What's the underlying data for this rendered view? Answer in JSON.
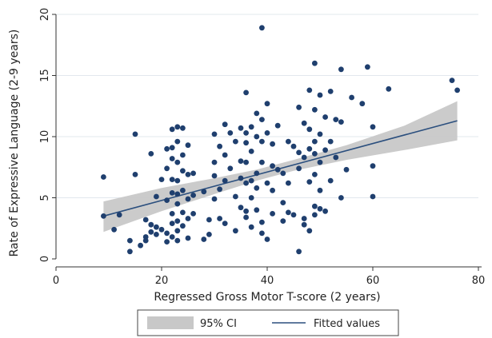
{
  "chart_data": {
    "type": "scatter",
    "xlabel": "Regressed Gross Motor T-score (2 years)",
    "ylabel": "Rate of Expressive Language (2-9 years)",
    "xlim": [
      0,
      80
    ],
    "ylim": [
      0,
      20
    ],
    "xticks": [
      0,
      20,
      40,
      60,
      80
    ],
    "yticks": [
      0,
      5,
      10,
      15,
      20
    ],
    "grid": "horizontal",
    "colors": {
      "points": "#1f3f6e",
      "fit_line": "#2b4f7e",
      "ci_band": "#c8c8c8",
      "grid": "#e2e8ee",
      "axis": "#333333"
    },
    "legend": {
      "position": "bottom",
      "entries": [
        {
          "label": "95% CI",
          "kind": "band"
        },
        {
          "label": "Fitted values",
          "kind": "line"
        }
      ]
    },
    "fitted_values": {
      "x_start": 9,
      "y_start": 3.5,
      "x_end": 76,
      "y_end": 11.3
    },
    "ci_band": {
      "x": [
        9,
        20,
        30,
        38,
        45,
        55,
        66,
        76
      ],
      "lower": [
        2.2,
        3.9,
        5.3,
        6.4,
        7.2,
        8.1,
        8.9,
        9.7
      ],
      "upper": [
        4.7,
        5.8,
        6.6,
        7.3,
        8.1,
        9.3,
        10.9,
        12.9
      ]
    },
    "points": [
      [
        9,
        6.7
      ],
      [
        9,
        3.5
      ],
      [
        11,
        2.4
      ],
      [
        12,
        3.6
      ],
      [
        14,
        0.6
      ],
      [
        14,
        1.5
      ],
      [
        15,
        10.2
      ],
      [
        15,
        6.9
      ],
      [
        16,
        1.1
      ],
      [
        17,
        1.5
      ],
      [
        17,
        1.8
      ],
      [
        17,
        3.2
      ],
      [
        18,
        8.6
      ],
      [
        18,
        2.8
      ],
      [
        18,
        2.2
      ],
      [
        19,
        5.1
      ],
      [
        19,
        2.6
      ],
      [
        19,
        2.0
      ],
      [
        20,
        2.4
      ],
      [
        20,
        6.5
      ],
      [
        21,
        9.0
      ],
      [
        21,
        7.4
      ],
      [
        21,
        4.8
      ],
      [
        21,
        2.1
      ],
      [
        21,
        1.4
      ],
      [
        22,
        10.6
      ],
      [
        22,
        9.1
      ],
      [
        22,
        8.2
      ],
      [
        22,
        6.5
      ],
      [
        22,
        5.4
      ],
      [
        22,
        3.7
      ],
      [
        22,
        2.9
      ],
      [
        22,
        1.8
      ],
      [
        23,
        10.8
      ],
      [
        23,
        9.6
      ],
      [
        23,
        7.9
      ],
      [
        23,
        6.4
      ],
      [
        23,
        5.3
      ],
      [
        23,
        4.5
      ],
      [
        23,
        3.1
      ],
      [
        23,
        2.3
      ],
      [
        23,
        1.5
      ],
      [
        24,
        10.7
      ],
      [
        24,
        8.5
      ],
      [
        24,
        7.2
      ],
      [
        24,
        5.6
      ],
      [
        24,
        3.8
      ],
      [
        24,
        2.7
      ],
      [
        25,
        9.3
      ],
      [
        25,
        6.9
      ],
      [
        25,
        4.9
      ],
      [
        25,
        3.3
      ],
      [
        25,
        1.7
      ],
      [
        26,
        7.0
      ],
      [
        26,
        5.2
      ],
      [
        26,
        3.7
      ],
      [
        28,
        5.5
      ],
      [
        28,
        1.6
      ],
      [
        29,
        3.2
      ],
      [
        29,
        2.0
      ],
      [
        30,
        10.2
      ],
      [
        30,
        7.9
      ],
      [
        30,
        6.8
      ],
      [
        30,
        4.9
      ],
      [
        31,
        9.2
      ],
      [
        31,
        5.7
      ],
      [
        31,
        3.3
      ],
      [
        32,
        11.0
      ],
      [
        32,
        8.5
      ],
      [
        32,
        6.4
      ],
      [
        32,
        2.9
      ],
      [
        33,
        10.3
      ],
      [
        33,
        7.4
      ],
      [
        34,
        9.6
      ],
      [
        34,
        5.1
      ],
      [
        34,
        2.3
      ],
      [
        35,
        10.7
      ],
      [
        35,
        8.0
      ],
      [
        35,
        6.6
      ],
      [
        35,
        4.2
      ],
      [
        36,
        13.6
      ],
      [
        36,
        10.3
      ],
      [
        36,
        9.5
      ],
      [
        36,
        7.9
      ],
      [
        36,
        6.2
      ],
      [
        36,
        3.9
      ],
      [
        36,
        3.4
      ],
      [
        37,
        10.8
      ],
      [
        37,
        8.8
      ],
      [
        37,
        6.4
      ],
      [
        37,
        5.0
      ],
      [
        37,
        2.6
      ],
      [
        38,
        11.9
      ],
      [
        38,
        10.0
      ],
      [
        38,
        7.0
      ],
      [
        38,
        5.8
      ],
      [
        38,
        4.0
      ],
      [
        39,
        18.9
      ],
      [
        39,
        11.4
      ],
      [
        39,
        9.6
      ],
      [
        39,
        7.9
      ],
      [
        39,
        3.0
      ],
      [
        39,
        2.1
      ],
      [
        40,
        12.7
      ],
      [
        40,
        10.3
      ],
      [
        40,
        6.2
      ],
      [
        40,
        1.6
      ],
      [
        41,
        9.4
      ],
      [
        41,
        7.6
      ],
      [
        41,
        5.6
      ],
      [
        41,
        3.7
      ],
      [
        42,
        10.9
      ],
      [
        42,
        7.3
      ],
      [
        43,
        7.0
      ],
      [
        43,
        4.6
      ],
      [
        43,
        3.1
      ],
      [
        44,
        9.6
      ],
      [
        44,
        6.2
      ],
      [
        44,
        3.8
      ],
      [
        45,
        9.2
      ],
      [
        45,
        3.6
      ],
      [
        46,
        12.4
      ],
      [
        46,
        8.7
      ],
      [
        46,
        7.4
      ],
      [
        46,
        0.6
      ],
      [
        47,
        11.1
      ],
      [
        47,
        8.3
      ],
      [
        47,
        3.3
      ],
      [
        47,
        2.8
      ],
      [
        48,
        13.8
      ],
      [
        48,
        10.6
      ],
      [
        48,
        9.0
      ],
      [
        48,
        6.3
      ],
      [
        48,
        2.3
      ],
      [
        49,
        16.0
      ],
      [
        49,
        12.2
      ],
      [
        49,
        9.6
      ],
      [
        49,
        8.6
      ],
      [
        49,
        6.9
      ],
      [
        49,
        4.3
      ],
      [
        49,
        3.6
      ],
      [
        50,
        13.4
      ],
      [
        50,
        10.2
      ],
      [
        50,
        7.9
      ],
      [
        50,
        5.6
      ],
      [
        50,
        4.1
      ],
      [
        51,
        11.6
      ],
      [
        51,
        8.9
      ],
      [
        51,
        3.9
      ],
      [
        52,
        13.7
      ],
      [
        52,
        9.6
      ],
      [
        52,
        6.4
      ],
      [
        53,
        11.4
      ],
      [
        53,
        8.3
      ],
      [
        54,
        15.5
      ],
      [
        54,
        11.2
      ],
      [
        54,
        5.0
      ],
      [
        55,
        7.3
      ],
      [
        56,
        13.2
      ],
      [
        58,
        12.7
      ],
      [
        59,
        15.7
      ],
      [
        60,
        10.8
      ],
      [
        60,
        7.6
      ],
      [
        60,
        5.1
      ],
      [
        63,
        13.9
      ],
      [
        75,
        14.6
      ],
      [
        76,
        13.8
      ]
    ]
  }
}
